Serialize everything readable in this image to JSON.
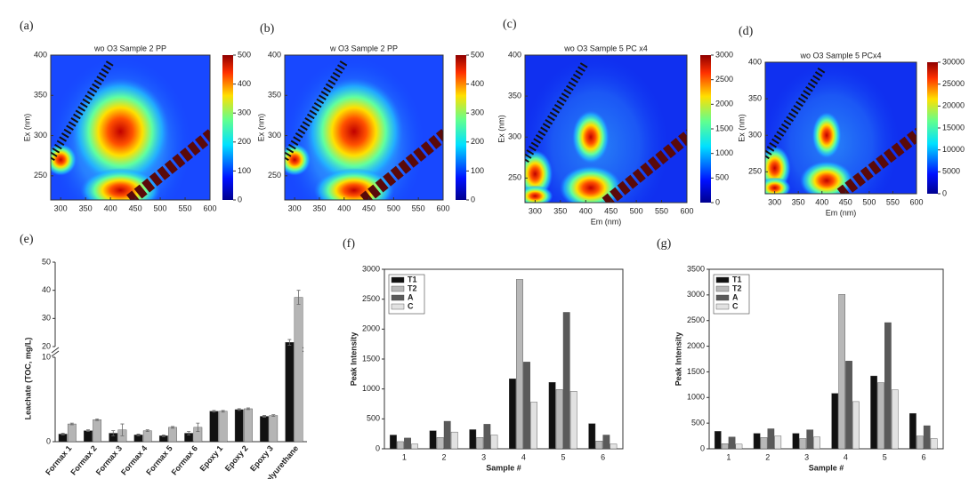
{
  "chart_data": [
    {
      "type": "contour",
      "panel": "(a)",
      "title": "wo O3 Sample 2 PP",
      "ylabel": "Ex (nm)",
      "xlim": [
        280,
        600
      ],
      "ylim": [
        220,
        400
      ],
      "xticks": [
        300,
        350,
        400,
        450,
        500,
        550,
        600
      ],
      "yticks": [
        250,
        300,
        350,
        400
      ],
      "clim": [
        0,
        500
      ],
      "cticks": [
        0,
        100,
        200,
        300,
        400,
        500
      ]
    },
    {
      "type": "contour",
      "panel": "(b)",
      "title": "w O3 Sample 2 PP",
      "ylabel": "Ex (nm)",
      "xlim": [
        280,
        600
      ],
      "ylim": [
        220,
        400
      ],
      "xticks": [
        300,
        350,
        400,
        450,
        500,
        550,
        600
      ],
      "yticks": [
        250,
        300,
        350,
        400
      ],
      "clim": [
        0,
        500
      ],
      "cticks": [
        0,
        100,
        200,
        300,
        400,
        500
      ]
    },
    {
      "type": "contour",
      "panel": "(c)",
      "title": "wo O3 Sample 5 PC x4",
      "xlabel": "Em (nm)",
      "ylabel": "Ex (nm)",
      "xlim": [
        280,
        600
      ],
      "ylim": [
        220,
        400
      ],
      "xticks": [
        300,
        350,
        400,
        450,
        500,
        550,
        600
      ],
      "yticks": [
        250,
        300,
        350,
        400
      ],
      "clim": [
        0,
        3000
      ],
      "cticks": [
        0,
        500,
        1000,
        1500,
        2000,
        2500,
        3000
      ]
    },
    {
      "type": "contour",
      "panel": "(d)",
      "title": "wo O3 Sample 5 PCx4",
      "xlabel": "Em (nm)",
      "ylabel": "Ex (nm)",
      "xlim": [
        280,
        600
      ],
      "ylim": [
        220,
        400
      ],
      "xticks": [
        300,
        350,
        400,
        450,
        500,
        550,
        600
      ],
      "yticks": [
        250,
        300,
        350,
        400
      ],
      "clim": [
        0,
        30000
      ],
      "cticks": [
        0,
        5000,
        10000,
        15000,
        20000,
        25000,
        30000
      ]
    },
    {
      "type": "bar",
      "panel": "(e)",
      "ylabel": "Leachate (TOC, mg/L)",
      "categories": [
        "Formax 1",
        "Formax 2",
        "Formax 3",
        "Formax 4",
        "Formax 5",
        "Formax 6",
        "Epoxy 1",
        "Epoxy 2",
        "Epoxy 3",
        "Polyurethane"
      ],
      "series": [
        {
          "color": "#111111",
          "values": [
            0.9,
            1.3,
            1.0,
            0.8,
            0.7,
            1.0,
            3.6,
            3.8,
            3.0,
            21.5
          ],
          "errors": [
            0.1,
            0.1,
            0.3,
            0.1,
            0.1,
            0.2,
            0.1,
            0.1,
            0.1,
            1.0
          ]
        },
        {
          "color": "#b5b5b5",
          "values": [
            2.1,
            2.6,
            1.4,
            1.3,
            1.7,
            1.7,
            3.6,
            3.9,
            3.1,
            37.5
          ],
          "errors": [
            0.1,
            0.1,
            0.7,
            0.1,
            0.1,
            0.5,
            0.1,
            0.1,
            0.1,
            2.5
          ]
        }
      ],
      "ylim_segments": [
        [
          0,
          10
        ],
        [
          20,
          50
        ]
      ],
      "yticks": [
        0,
        10,
        20,
        30,
        40,
        50
      ]
    },
    {
      "type": "bar",
      "panel": "(f)",
      "xlabel": "Sample #",
      "ylabel": "Peak Intensity",
      "categories": [
        "1",
        "2",
        "3",
        "4",
        "5",
        "6"
      ],
      "series": [
        {
          "name": "T1",
          "color": "#111111",
          "values": [
            230,
            300,
            320,
            1170,
            1110,
            420
          ]
        },
        {
          "name": "T2",
          "color": "#b8b8b8",
          "values": [
            120,
            190,
            190,
            2830,
            990,
            130
          ]
        },
        {
          "name": "A",
          "color": "#5a5a5a",
          "values": [
            180,
            460,
            410,
            1450,
            2280,
            230
          ]
        },
        {
          "name": "C",
          "color": "#e2e2e2",
          "values": [
            80,
            280,
            230,
            780,
            960,
            80
          ]
        }
      ],
      "ylim": [
        0,
        3000
      ],
      "yticks": [
        0,
        500,
        1000,
        1500,
        2000,
        2500,
        3000
      ]
    },
    {
      "type": "bar",
      "panel": "(g)",
      "xlabel": "Sample #",
      "ylabel": "Peak Intensity",
      "categories": [
        "1",
        "2",
        "3",
        "4",
        "5",
        "6"
      ],
      "series": [
        {
          "name": "T1",
          "color": "#111111",
          "values": [
            340,
            300,
            300,
            1080,
            1420,
            690
          ]
        },
        {
          "name": "T2",
          "color": "#b8b8b8",
          "values": [
            100,
            220,
            200,
            3010,
            1290,
            250
          ]
        },
        {
          "name": "A",
          "color": "#5a5a5a",
          "values": [
            230,
            390,
            370,
            1710,
            2460,
            450
          ]
        },
        {
          "name": "C",
          "color": "#e2e2e2",
          "values": [
            90,
            250,
            230,
            920,
            1150,
            200
          ]
        }
      ],
      "ylim": [
        0,
        3500
      ],
      "yticks": [
        0,
        500,
        1000,
        1500,
        2000,
        2500,
        3000,
        3500
      ]
    }
  ]
}
